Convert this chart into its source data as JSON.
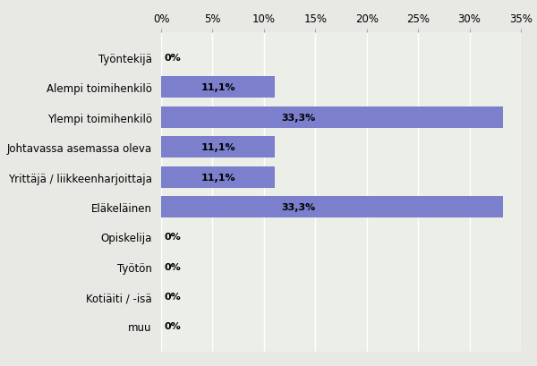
{
  "categories": [
    "muu",
    "Kotiäiti / -isä",
    "Työtön",
    "Opiskelija",
    "Eläkeläinen",
    "Yrittäjä / liikkeenharjoittaja",
    "Johtavassa asemassa oleva",
    "Ylempi toimihenkilö",
    "Alempi toimihenkilö",
    "Työntekijä"
  ],
  "values": [
    0,
    0,
    0,
    0,
    33.3,
    11.1,
    11.1,
    33.3,
    11.1,
    0
  ],
  "bar_color": "#7b7fcc",
  "figure_bg_color": "#e8e8e4",
  "plot_bg_color": "#eceee8",
  "grid_color": "#ffffff",
  "label_color": "#000000",
  "text_fontsize": 8.5,
  "bar_label_fontsize": 8,
  "xlim": [
    0,
    35
  ],
  "xticks": [
    0,
    5,
    10,
    15,
    20,
    25,
    30,
    35
  ]
}
